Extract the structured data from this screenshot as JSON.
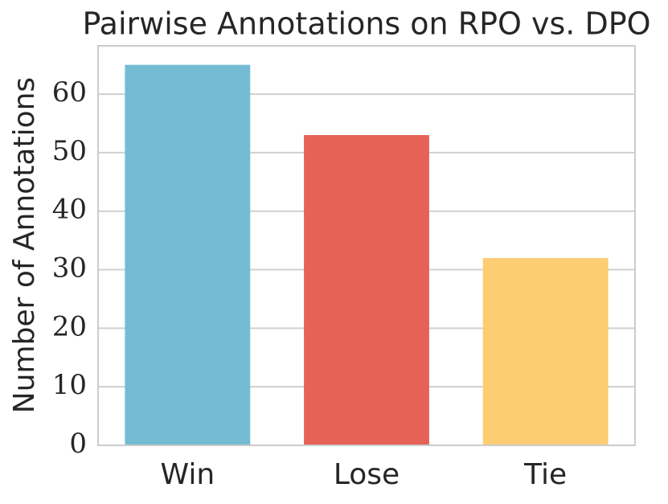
{
  "chart_data": {
    "type": "bar",
    "title": "Pairwise Annotations on RPO vs. DPO",
    "y_label": "Number of Annotations",
    "categories": [
      "Win",
      "Lose",
      "Tie"
    ],
    "values": [
      65,
      53,
      32
    ],
    "colors": [
      "#74bbd4",
      "#e66257",
      "#fccd72"
    ],
    "ylim": [
      0,
      68.25
    ],
    "yticks": [
      0,
      10,
      20,
      30,
      40,
      50,
      60
    ],
    "grid": true
  }
}
